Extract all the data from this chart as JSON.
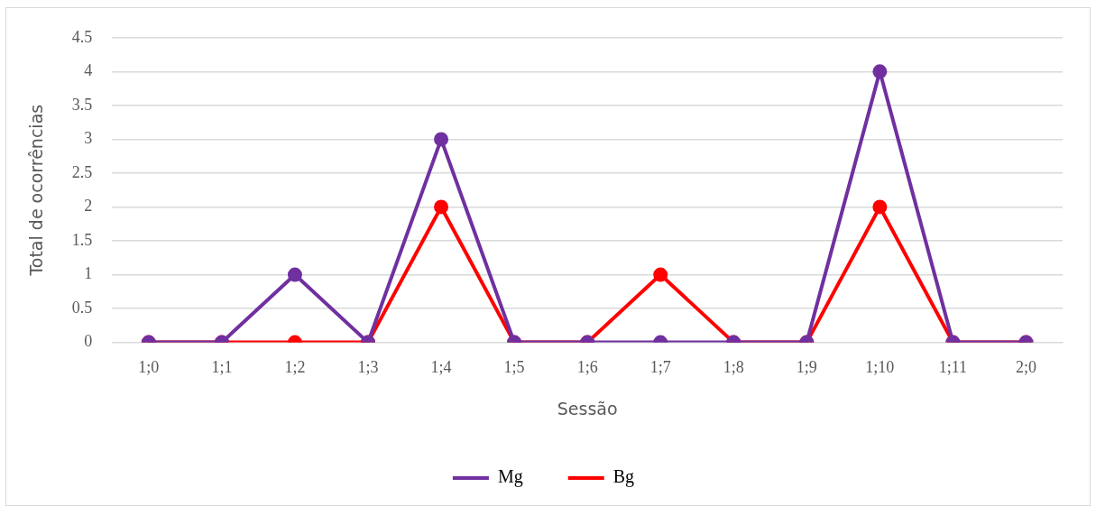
{
  "chart_data": {
    "type": "line",
    "xlabel": "Sessão",
    "ylabel": "Total de ocorrências",
    "categories": [
      "1;0",
      "1;1",
      "1;2",
      "1;3",
      "1;4",
      "1;5",
      "1;6",
      "1;7",
      "1;8",
      "1;9",
      "1;10",
      "1;11",
      "2;0"
    ],
    "series": [
      {
        "name": "Mg",
        "color": "#7030a0",
        "values": [
          0,
          0,
          1,
          0,
          3,
          0,
          0,
          0,
          0,
          0,
          4,
          0,
          0
        ]
      },
      {
        "name": "Bg",
        "color": "#ff0000",
        "values": [
          0,
          0,
          0,
          0,
          2,
          0,
          0,
          1,
          0,
          0,
          2,
          0,
          0
        ]
      }
    ],
    "ylim": [
      0,
      4.5
    ],
    "yticks": [
      0,
      0.5,
      1,
      1.5,
      2,
      2.5,
      3,
      3.5,
      4,
      4.5
    ],
    "grid": "y",
    "legend": "bottom",
    "marker": "circle",
    "line_style": "solid"
  }
}
